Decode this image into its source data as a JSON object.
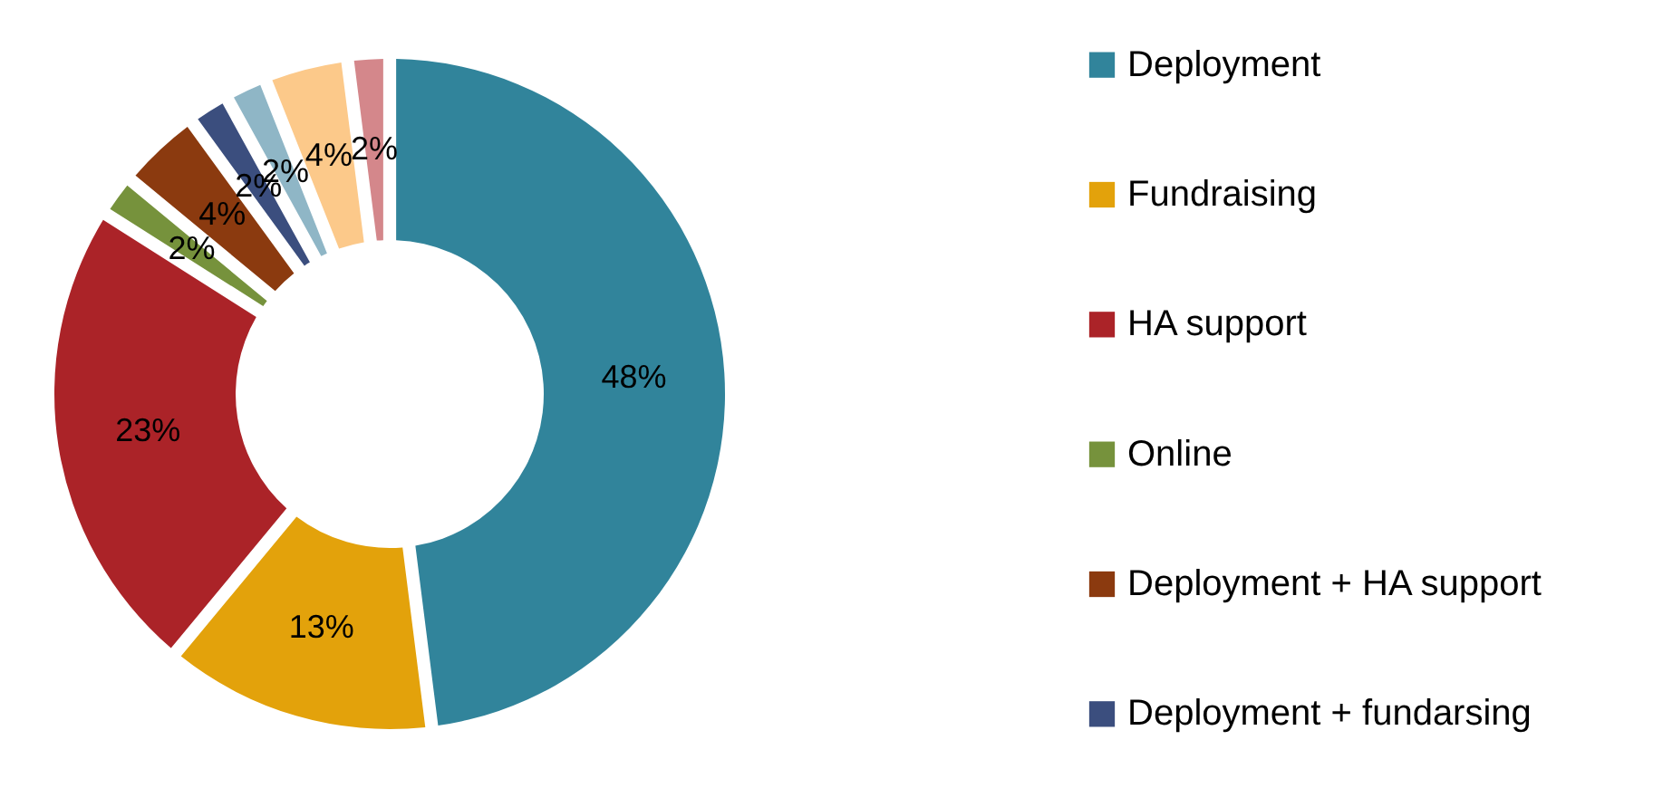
{
  "chart_data": {
    "type": "donut",
    "categories": [
      "Deployment",
      "Fundraising",
      "HA support",
      "Online",
      "Deployment + HA support",
      "Deployment + fundarsing",
      null,
      null,
      null
    ],
    "values": [
      48,
      13,
      23,
      2,
      4,
      2,
      2,
      4,
      2
    ],
    "value_labels": [
      "48%",
      "13%",
      "23%",
      "2%",
      "4%",
      "2%",
      "2%",
      "4%",
      "2%"
    ],
    "colors": [
      "#31849b",
      "#e3a20b",
      "#ab2328",
      "#76923c",
      "#8b3a0f",
      "#3b4e7e",
      "#8fb6c6",
      "#fcc98a",
      "#d4878b"
    ],
    "legend": "right"
  }
}
